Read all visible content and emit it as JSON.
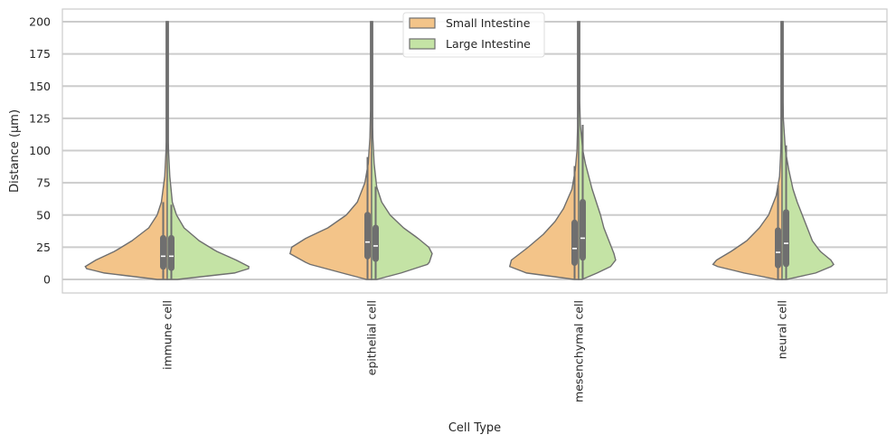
{
  "chart_data": {
    "type": "violin",
    "split": true,
    "xlabel": "Cell Type",
    "ylabel": "Distance (µm)",
    "ylim": [
      -10,
      210
    ],
    "yticks": [
      0,
      25,
      50,
      75,
      100,
      125,
      150,
      175,
      200
    ],
    "grid": true,
    "legend_position": "top-center",
    "categories": [
      "immune cell",
      "epithelial cell",
      "mesenchymal cell",
      "neural cell"
    ],
    "series": [
      {
        "name": "Small Intestine",
        "color": "#f3c489",
        "groups": [
          {
            "max": 200,
            "q1": 10,
            "median": 18,
            "q3": 32,
            "whisker_high": 60,
            "profile": [
              [
                0,
                0.12
              ],
              [
                5,
                0.75
              ],
              [
                9,
                1.0
              ],
              [
                15,
                0.85
              ],
              [
                22,
                0.62
              ],
              [
                30,
                0.42
              ],
              [
                40,
                0.22
              ],
              [
                50,
                0.12
              ],
              [
                60,
                0.07
              ],
              [
                80,
                0.03
              ],
              [
                100,
                0.015
              ],
              [
                130,
                0.006
              ],
              [
                200,
                0.003
              ]
            ]
          },
          {
            "max": 200,
            "q1": 18,
            "median": 29,
            "q3": 50,
            "whisker_high": 95,
            "profile": [
              [
                0,
                0.06
              ],
              [
                5,
                0.35
              ],
              [
                12,
                0.75
              ],
              [
                20,
                0.97
              ],
              [
                25,
                0.95
              ],
              [
                32,
                0.78
              ],
              [
                40,
                0.52
              ],
              [
                50,
                0.3
              ],
              [
                60,
                0.17
              ],
              [
                75,
                0.08
              ],
              [
                90,
                0.04
              ],
              [
                110,
                0.02
              ],
              [
                140,
                0.01
              ],
              [
                200,
                0.003
              ]
            ]
          },
          {
            "max": 200,
            "q1": 13,
            "median": 24,
            "q3": 44,
            "whisker_high": 88,
            "profile": [
              [
                0,
                0.05
              ],
              [
                5,
                0.62
              ],
              [
                10,
                0.82
              ],
              [
                15,
                0.8
              ],
              [
                25,
                0.6
              ],
              [
                35,
                0.42
              ],
              [
                45,
                0.28
              ],
              [
                55,
                0.18
              ],
              [
                70,
                0.08
              ],
              [
                85,
                0.04
              ],
              [
                100,
                0.02
              ],
              [
                130,
                0.008
              ],
              [
                200,
                0.003
              ]
            ]
          },
          {
            "max": 200,
            "q1": 11,
            "median": 21,
            "q3": 38,
            "whisker_high": 73,
            "profile": [
              [
                0,
                0.06
              ],
              [
                5,
                0.45
              ],
              [
                11,
                0.83
              ],
              [
                15,
                0.78
              ],
              [
                22,
                0.6
              ],
              [
                30,
                0.42
              ],
              [
                40,
                0.27
              ],
              [
                50,
                0.16
              ],
              [
                65,
                0.07
              ],
              [
                80,
                0.03
              ],
              [
                100,
                0.015
              ],
              [
                130,
                0.007
              ],
              [
                200,
                0.003
              ]
            ]
          }
        ]
      },
      {
        "name": "Large Intestine",
        "color": "#c4e3a5",
        "groups": [
          {
            "max": 200,
            "q1": 9,
            "median": 18,
            "q3": 32,
            "whisker_high": 58,
            "profile": [
              [
                0,
                0.12
              ],
              [
                5,
                0.8
              ],
              [
                9,
                1.0
              ],
              [
                15,
                0.82
              ],
              [
                22,
                0.58
              ],
              [
                30,
                0.38
              ],
              [
                40,
                0.2
              ],
              [
                50,
                0.11
              ],
              [
                60,
                0.06
              ],
              [
                80,
                0.03
              ],
              [
                100,
                0.015
              ],
              [
                130,
                0.006
              ],
              [
                200,
                0.003
              ]
            ]
          },
          {
            "max": 200,
            "q1": 16,
            "median": 26,
            "q3": 40,
            "whisker_high": 72,
            "profile": [
              [
                0,
                0.06
              ],
              [
                5,
                0.35
              ],
              [
                12,
                0.68
              ],
              [
                20,
                0.72
              ],
              [
                25,
                0.68
              ],
              [
                32,
                0.55
              ],
              [
                40,
                0.38
              ],
              [
                50,
                0.22
              ],
              [
                60,
                0.12
              ],
              [
                72,
                0.06
              ],
              [
                90,
                0.03
              ],
              [
                110,
                0.015
              ],
              [
                140,
                0.008
              ],
              [
                200,
                0.003
              ]
            ]
          },
          {
            "max": 200,
            "q1": 17,
            "median": 32,
            "q3": 60,
            "whisker_high": 120,
            "profile": [
              [
                0,
                0.04
              ],
              [
                5,
                0.22
              ],
              [
                10,
                0.38
              ],
              [
                15,
                0.44
              ],
              [
                20,
                0.42
              ],
              [
                30,
                0.36
              ],
              [
                40,
                0.3
              ],
              [
                50,
                0.26
              ],
              [
                60,
                0.21
              ],
              [
                70,
                0.16
              ],
              [
                80,
                0.12
              ],
              [
                90,
                0.08
              ],
              [
                100,
                0.05
              ],
              [
                120,
                0.02
              ],
              [
                150,
                0.008
              ],
              [
                200,
                0.003
              ]
            ]
          },
          {
            "max": 200,
            "q1": 12,
            "median": 28,
            "q3": 52,
            "whisker_high": 104,
            "profile": [
              [
                0,
                0.05
              ],
              [
                5,
                0.4
              ],
              [
                11,
                0.62
              ],
              [
                15,
                0.58
              ],
              [
                22,
                0.45
              ],
              [
                30,
                0.36
              ],
              [
                40,
                0.3
              ],
              [
                50,
                0.24
              ],
              [
                60,
                0.18
              ],
              [
                70,
                0.13
              ],
              [
                85,
                0.08
              ],
              [
                100,
                0.04
              ],
              [
                125,
                0.015
              ],
              [
                200,
                0.003
              ]
            ]
          }
        ]
      }
    ]
  }
}
